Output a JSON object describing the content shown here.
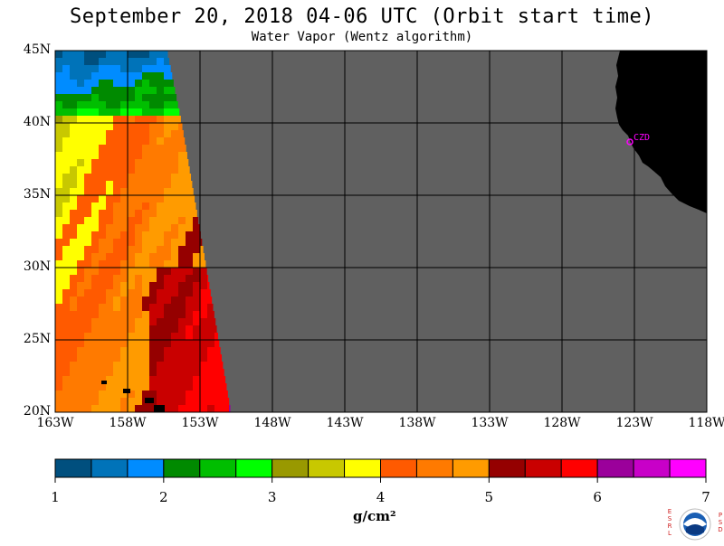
{
  "header": {
    "title": "September 20, 2018  04-06 UTC  (Orbit start time)",
    "subtitle": "Water Vapor (Wentz algorithm)"
  },
  "map": {
    "region": "Northeast Pacific",
    "lat_range": [
      20,
      45
    ],
    "lon_range": [
      -163,
      -118
    ],
    "lat_labels": [
      "45N",
      "40N",
      "35N",
      "30N",
      "25N",
      "20N"
    ],
    "lon_labels": [
      "163W",
      "158W",
      "153W",
      "148W",
      "143W",
      "138W",
      "133W",
      "128W",
      "123W",
      "118W"
    ],
    "colors": {
      "no_data": "#606060",
      "land": "#000000",
      "grid": "#000000"
    },
    "station": {
      "label": "CZD",
      "color": "#ff00ff"
    }
  },
  "colorbar": {
    "ticks": [
      "1",
      "2",
      "3",
      "4",
      "5",
      "6",
      "7"
    ],
    "units": "g/cm²",
    "range": [
      1,
      7
    ],
    "colors": [
      "#004f7e",
      "#0073b9",
      "#008cff",
      "#008a00",
      "#00be00",
      "#00ff00",
      "#999900",
      "#c8c800",
      "#ffff00",
      "#ff5a00",
      "#ff7a00",
      "#ff9b00",
      "#950000",
      "#c90000",
      "#ff0000",
      "#9b009b",
      "#c800c8",
      "#ff00ff"
    ]
  },
  "logo": {
    "left_letters": [
      "E",
      "S",
      "R",
      "L"
    ],
    "right_letters": [
      "P",
      "S",
      "D"
    ],
    "name": "noaa-logo"
  }
}
